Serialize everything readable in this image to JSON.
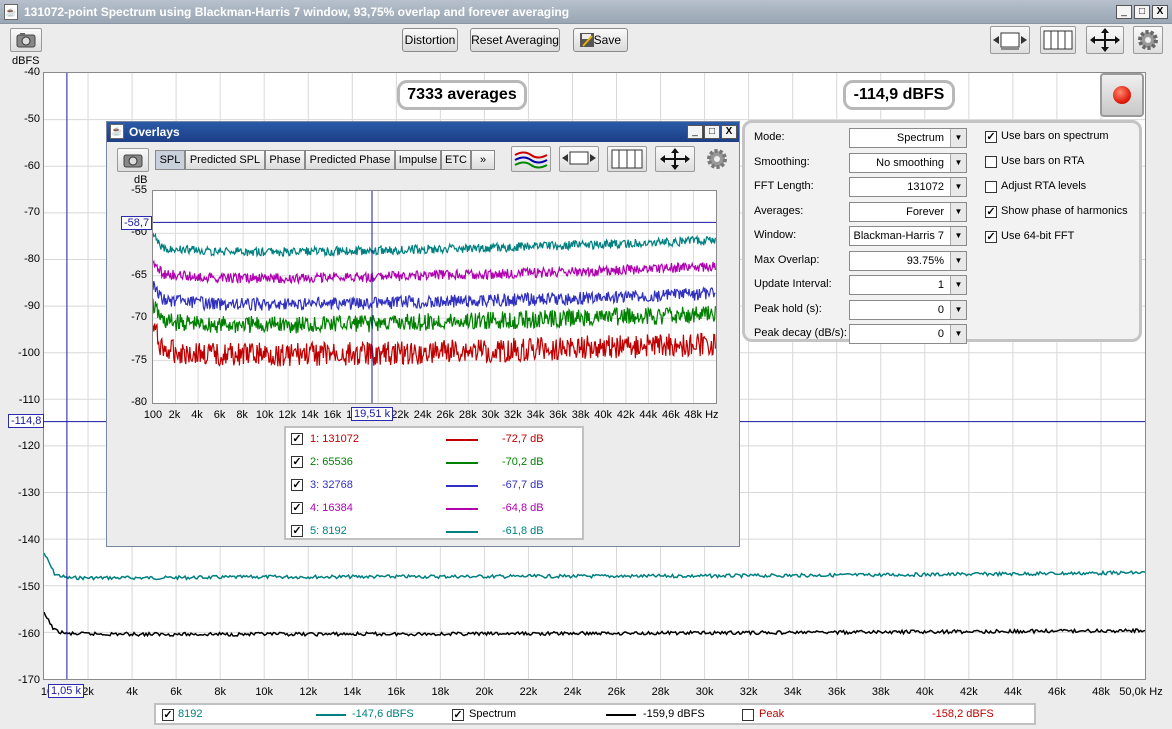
{
  "window": {
    "title": "131072-point Spectrum using Blackman-Harris 7 window, 93,75% overlap and forever averaging",
    "min": "_",
    "max": "□",
    "close": "X"
  },
  "toolbar": {
    "distortion": "Distortion",
    "reset_averaging": "Reset Averaging",
    "save": "Save"
  },
  "main": {
    "y_unit": "dBFS",
    "y_ticks": [
      "-40",
      "-50",
      "-60",
      "-70",
      "-80",
      "-90",
      "-100",
      "-110",
      "-120",
      "-130",
      "-140",
      "-150",
      "-160",
      "-170"
    ],
    "x_ticks": [
      "10",
      "2k",
      "4k",
      "6k",
      "8k",
      "10k",
      "12k",
      "14k",
      "16k",
      "18k",
      "20k",
      "22k",
      "24k",
      "26k",
      "28k",
      "30k",
      "32k",
      "34k",
      "36k",
      "38k",
      "40k",
      "42k",
      "44k",
      "46k",
      "48k",
      "50,0k Hz"
    ],
    "averages_readout": "7333 averages",
    "level_readout": "-114,9 dBFS",
    "cursor_y_label": "-114,8",
    "cursor_x_label": "1,05 k"
  },
  "settings": {
    "rows": [
      {
        "label": "Mode:",
        "value": "Spectrum"
      },
      {
        "label": "Smoothing:",
        "value": "No  smoothing"
      },
      {
        "label": "FFT Length:",
        "value": "131072"
      },
      {
        "label": "Averages:",
        "value": "Forever"
      },
      {
        "label": "Window:",
        "value": "Blackman-Harris 7"
      },
      {
        "label": "Max Overlap:",
        "value": "93.75%"
      },
      {
        "label": "Update Interval:",
        "value": "1"
      },
      {
        "label": "Peak hold (s):",
        "value": "0"
      },
      {
        "label": "Peak decay (dB/s):",
        "value": "0"
      }
    ],
    "checks": [
      {
        "label": "Use bars on spectrum",
        "checked": true
      },
      {
        "label": "Use bars on RTA",
        "checked": false
      },
      {
        "label": "Adjust RTA levels",
        "checked": false
      },
      {
        "label": "Show phase of harmonics",
        "checked": true
      },
      {
        "label": "Use 64-bit FFT",
        "checked": true
      }
    ]
  },
  "overlays": {
    "title": "Overlays",
    "tabs": [
      "SPL",
      "Predicted SPL",
      "Phase",
      "Predicted Phase",
      "Impulse",
      "ETC",
      "»"
    ],
    "y_unit": "dB",
    "y_ticks": [
      "-55",
      "-60",
      "-65",
      "-70",
      "-75",
      "-80"
    ],
    "x_ticks": [
      "100",
      "2k",
      "4k",
      "6k",
      "8k",
      "10k",
      "12k",
      "14k",
      "16k",
      "18k",
      "20k",
      "22k",
      "24k",
      "26k",
      "28k",
      "30k",
      "32k",
      "34k",
      "36k",
      "38k",
      "40k",
      "42k",
      "44k",
      "46k",
      "48k Hz"
    ],
    "cursor_y_label": "-58,7",
    "cursor_x_label": "19,51 k",
    "legend": [
      {
        "name": "1: 131072",
        "value": "-72,7 dB",
        "color": "#c00000"
      },
      {
        "name": "2: 65536",
        "value": "-70,2 dB",
        "color": "#008000"
      },
      {
        "name": "3: 32768",
        "value": "-67,7 dB",
        "color": "#3030c0"
      },
      {
        "name": "4: 16384",
        "value": "-64,8 dB",
        "color": "#b000b0"
      },
      {
        "name": "5: 8192",
        "value": "-61,8 dB",
        "color": "#008080"
      }
    ]
  },
  "bottom_legend": {
    "item1_name": "8192",
    "item1_value": "-147,6 dBFS",
    "item1_color": "#008080",
    "item2_name": "Spectrum",
    "item2_value": "-159,9 dBFS",
    "item2_color": "#000000",
    "item3_name": "Peak",
    "item3_value": "-158,2 dBFS",
    "item3_color": "#c00000"
  },
  "chart_data": [
    {
      "type": "line",
      "xlabel": "Hz",
      "ylabel": "dBFS",
      "xlim": [
        10,
        50000
      ],
      "ylim": [
        -170,
        -40
      ],
      "grid": true,
      "series": [
        {
          "name": "8192",
          "color": "#008080",
          "x": [
            10,
            500,
            1050,
            5000,
            10000,
            20000,
            30000,
            40000,
            50000
          ],
          "y": [
            -143,
            -147.5,
            -148.3,
            -148.3,
            -148.1,
            -148,
            -147.9,
            -147.6,
            -147.2
          ]
        },
        {
          "name": "Spectrum",
          "color": "#000000",
          "x": [
            10,
            500,
            1050,
            5000,
            10000,
            20000,
            30000,
            40000,
            50000
          ],
          "y": [
            -156,
            -159.6,
            -160.3,
            -160.4,
            -160.4,
            -160.3,
            -160.1,
            -159.9,
            -159.6
          ]
        }
      ]
    },
    {
      "type": "line",
      "xlabel": "Hz",
      "ylabel": "dB",
      "xlim": [
        100,
        50000
      ],
      "ylim": [
        -80,
        -55
      ],
      "grid": true,
      "series": [
        {
          "name": "1: 131072",
          "color": "#c00000",
          "x": [
            100,
            1000,
            5000,
            10000,
            20000,
            30000,
            40000,
            50000
          ],
          "y": [
            -71,
            -73.8,
            -74.3,
            -74.3,
            -74.2,
            -73.8,
            -73.4,
            -73.1
          ]
        },
        {
          "name": "2: 65536",
          "color": "#008000",
          "x": [
            100,
            1000,
            5000,
            10000,
            20000,
            30000,
            40000,
            50000
          ],
          "y": [
            -68.5,
            -70.4,
            -70.8,
            -70.8,
            -70.6,
            -70.3,
            -69.9,
            -69.5
          ]
        },
        {
          "name": "3: 32768",
          "color": "#3030c0",
          "x": [
            100,
            1000,
            5000,
            10000,
            20000,
            30000,
            40000,
            50000
          ],
          "y": [
            -66.2,
            -67.8,
            -68.3,
            -68.4,
            -68.2,
            -67.9,
            -67.6,
            -67.1
          ]
        },
        {
          "name": "4: 16384",
          "color": "#b000b0",
          "x": [
            100,
            1000,
            5000,
            10000,
            20000,
            30000,
            40000,
            50000
          ],
          "y": [
            -63.5,
            -64.8,
            -65.2,
            -65.3,
            -65.1,
            -64.8,
            -64.4,
            -63.9
          ]
        },
        {
          "name": "5: 8192",
          "color": "#008080",
          "x": [
            100,
            1000,
            5000,
            10000,
            20000,
            30000,
            40000,
            50000
          ],
          "y": [
            -60.3,
            -61.7,
            -62.1,
            -62.2,
            -62,
            -61.7,
            -61.3,
            -60.8
          ]
        }
      ]
    }
  ]
}
